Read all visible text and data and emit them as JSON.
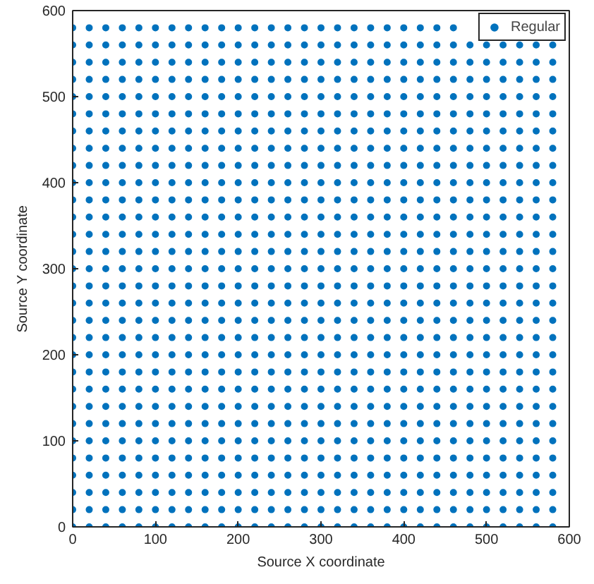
{
  "chart_data": {
    "type": "scatter",
    "xlabel": "Source X coordinate",
    "ylabel": "Source Y coordinate",
    "xlim": [
      0,
      600
    ],
    "ylim": [
      0,
      600
    ],
    "xticks": [
      0,
      100,
      200,
      300,
      400,
      500,
      600
    ],
    "yticks": [
      0,
      100,
      200,
      300,
      400,
      500,
      600
    ],
    "legend": "top right",
    "marker": "circle",
    "series": [
      {
        "name": "Regular",
        "color": "#0072bd",
        "x": [
          0,
          20,
          40,
          60,
          80,
          100,
          120,
          140,
          160,
          180,
          200,
          220,
          240,
          260,
          280,
          300,
          320,
          340,
          360,
          380,
          400,
          420,
          440,
          460,
          480,
          500,
          520,
          540,
          560,
          580,
          0,
          20,
          40,
          60,
          80,
          100,
          120,
          140,
          160,
          180,
          200,
          220,
          240,
          260,
          280,
          300,
          320,
          340,
          360,
          380,
          400,
          420,
          440,
          460,
          480,
          500,
          520,
          540,
          560,
          580,
          0,
          20,
          40,
          60,
          80,
          100,
          120,
          140,
          160,
          180,
          200,
          220,
          240,
          260,
          280,
          300,
          320,
          340,
          360,
          380,
          400,
          420,
          440,
          460,
          480,
          500,
          520,
          540,
          560,
          580,
          0,
          20,
          40,
          60,
          80,
          100,
          120,
          140,
          160,
          180,
          200,
          220,
          240,
          260,
          280,
          300,
          320,
          340,
          360,
          380,
          400,
          420,
          440,
          460,
          480,
          500,
          520,
          540,
          560,
          580,
          0,
          20,
          40,
          60,
          80,
          100,
          120,
          140,
          160,
          180,
          200,
          220,
          240,
          260,
          280,
          300,
          320,
          340,
          360,
          380,
          400,
          420,
          440,
          460,
          480,
          500,
          520,
          540,
          560,
          580,
          0,
          20,
          40,
          60,
          80,
          100,
          120,
          140,
          160,
          180,
          200,
          220,
          240,
          260,
          280,
          300,
          320,
          340,
          360,
          380,
          400,
          420,
          440,
          460,
          480,
          500,
          520,
          540,
          560,
          580,
          0,
          20,
          40,
          60,
          80,
          100,
          120,
          140,
          160,
          180,
          200,
          220,
          240,
          260,
          280,
          300,
          320,
          340,
          360,
          380,
          400,
          420,
          440,
          460,
          480,
          500,
          520,
          540,
          560,
          580,
          0,
          20,
          40,
          60,
          80,
          100,
          120,
          140,
          160,
          180,
          200,
          220,
          240,
          260,
          280,
          300,
          320,
          340,
          360,
          380,
          400,
          420,
          440,
          460,
          480,
          500,
          520,
          540,
          560,
          580,
          0,
          20,
          40,
          60,
          80,
          100,
          120,
          140,
          160,
          180,
          200,
          220,
          240,
          260,
          280,
          300,
          320,
          340,
          360,
          380,
          400,
          420,
          440,
          460,
          480,
          500,
          520,
          540,
          560,
          580,
          0,
          20,
          40,
          60,
          80,
          100,
          120,
          140,
          160,
          180,
          200,
          220,
          240,
          260,
          280,
          300,
          320,
          340,
          360,
          380,
          400,
          420,
          440,
          460,
          480,
          500,
          520,
          540,
          560,
          580,
          0,
          20,
          40,
          60,
          80,
          100,
          120,
          140,
          160,
          180,
          200,
          220,
          240,
          260,
          280,
          300,
          320,
          340,
          360,
          380,
          400,
          420,
          440,
          460,
          480,
          500,
          520,
          540,
          560,
          580,
          0,
          20,
          40,
          60,
          80,
          100,
          120,
          140,
          160,
          180,
          200,
          220,
          240,
          260,
          280,
          300,
          320,
          340,
          360,
          380,
          400,
          420,
          440,
          460,
          480,
          500,
          520,
          540,
          560,
          580,
          0,
          20,
          40,
          60,
          80,
          100,
          120,
          140,
          160,
          180,
          200,
          220,
          240,
          260,
          280,
          300,
          320,
          340,
          360,
          380,
          400,
          420,
          440,
          460,
          480,
          500,
          520,
          540,
          560,
          580,
          0,
          20,
          40,
          60,
          80,
          100,
          120,
          140,
          160,
          180,
          200,
          220,
          240,
          260,
          280,
          300,
          320,
          340,
          360,
          380,
          400,
          420,
          440,
          460,
          480,
          500,
          520,
          540,
          560,
          580,
          0,
          20,
          40,
          60,
          80,
          100,
          120,
          140,
          160,
          180,
          200,
          220,
          240,
          260,
          280,
          300,
          320,
          340,
          360,
          380,
          400,
          420,
          440,
          460,
          480,
          500,
          520,
          540,
          560,
          580,
          0,
          20,
          40,
          60,
          80,
          100,
          120,
          140,
          160,
          180,
          200,
          220,
          240,
          260,
          280,
          300,
          320,
          340,
          360,
          380,
          400,
          420,
          440,
          460,
          480,
          500,
          520,
          540,
          560,
          580,
          0,
          20,
          40,
          60,
          80,
          100,
          120,
          140,
          160,
          180,
          200,
          220,
          240,
          260,
          280,
          300,
          320,
          340,
          360,
          380,
          400,
          420,
          440,
          460,
          480,
          500,
          520,
          540,
          560,
          580,
          0,
          20,
          40,
          60,
          80,
          100,
          120,
          140,
          160,
          180,
          200,
          220,
          240,
          260,
          280,
          300,
          320,
          340,
          360,
          380,
          400,
          420,
          440,
          460,
          480,
          500,
          520,
          540,
          560,
          580,
          0,
          20,
          40,
          60,
          80,
          100,
          120,
          140,
          160,
          180,
          200,
          220,
          240,
          260,
          280,
          300,
          320,
          340,
          360,
          380,
          400,
          420,
          440,
          460,
          480,
          500,
          520,
          540,
          560,
          580,
          0,
          20,
          40,
          60,
          80,
          100,
          120,
          140,
          160,
          180,
          200,
          220,
          240,
          260,
          280,
          300,
          320,
          340,
          360,
          380,
          400,
          420,
          440,
          460,
          480,
          500,
          520,
          540,
          560,
          580,
          0,
          20,
          40,
          60,
          80,
          100,
          120,
          140,
          160,
          180,
          200,
          220,
          240,
          260,
          280,
          300,
          320,
          340,
          360,
          380,
          400,
          420,
          440,
          460,
          480,
          500,
          520,
          540,
          560,
          580,
          0,
          20,
          40,
          60,
          80,
          100,
          120,
          140,
          160,
          180,
          200,
          220,
          240,
          260,
          280,
          300,
          320,
          340,
          360,
          380,
          400,
          420,
          440,
          460,
          480,
          500,
          520,
          540,
          560,
          580,
          0,
          20,
          40,
          60,
          80,
          100,
          120,
          140,
          160,
          180,
          200,
          220,
          240,
          260,
          280,
          300,
          320,
          340,
          360,
          380,
          400,
          420,
          440,
          460,
          480,
          500,
          520,
          540,
          560,
          580,
          0,
          20,
          40,
          60,
          80,
          100,
          120,
          140,
          160,
          180,
          200,
          220,
          240,
          260,
          280,
          300,
          320,
          340,
          360,
          380,
          400,
          420,
          440,
          460,
          480,
          500,
          520,
          540,
          560,
          580,
          0,
          20,
          40,
          60,
          80,
          100,
          120,
          140,
          160,
          180,
          200,
          220,
          240,
          260,
          280,
          300,
          320,
          340,
          360,
          380,
          400,
          420,
          440,
          460,
          480,
          500,
          520,
          540,
          560,
          580,
          0,
          20,
          40,
          60,
          80,
          100,
          120,
          140,
          160,
          180,
          200,
          220,
          240,
          260,
          280,
          300,
          320,
          340,
          360,
          380,
          400,
          420,
          440,
          460,
          480,
          500,
          520,
          540,
          560,
          580,
          0,
          20,
          40,
          60,
          80,
          100,
          120,
          140,
          160,
          180,
          200,
          220,
          240,
          260,
          280,
          300,
          320,
          340,
          360,
          380,
          400,
          420,
          440,
          460,
          480,
          500,
          520,
          540,
          560,
          580,
          0,
          20,
          40,
          60,
          80,
          100,
          120,
          140,
          160,
          180,
          200,
          220,
          240,
          260,
          280,
          300,
          320,
          340,
          360,
          380,
          400,
          420,
          440,
          460,
          480,
          500,
          520,
          540,
          560,
          580,
          0,
          20,
          40,
          60,
          80,
          100,
          120,
          140,
          160,
          180,
          200,
          220,
          240,
          260,
          280,
          300,
          320,
          340,
          360,
          380,
          400,
          420,
          440,
          460,
          480,
          500,
          520,
          540,
          560,
          580,
          0,
          20,
          40,
          60,
          80,
          100,
          120,
          140,
          160,
          180,
          200,
          220,
          240,
          260,
          280,
          300,
          320,
          340,
          360,
          380,
          400,
          420,
          440,
          460,
          null,
          null,
          null,
          null,
          null,
          null
        ],
        "values": [
          0,
          0,
          0,
          0,
          0,
          0,
          0,
          0,
          0,
          0,
          0,
          0,
          0,
          0,
          0,
          0,
          0,
          0,
          0,
          0,
          0,
          0,
          0,
          0,
          0,
          0,
          0,
          0,
          0,
          0,
          20,
          20,
          20,
          20,
          20,
          20,
          20,
          20,
          20,
          20,
          20,
          20,
          20,
          20,
          20,
          20,
          20,
          20,
          20,
          20,
          20,
          20,
          20,
          20,
          20,
          20,
          20,
          20,
          20,
          20,
          40,
          40,
          40,
          40,
          40,
          40,
          40,
          40,
          40,
          40,
          40,
          40,
          40,
          40,
          40,
          40,
          40,
          40,
          40,
          40,
          40,
          40,
          40,
          40,
          40,
          40,
          40,
          40,
          40,
          40,
          60,
          60,
          60,
          60,
          60,
          60,
          60,
          60,
          60,
          60,
          60,
          60,
          60,
          60,
          60,
          60,
          60,
          60,
          60,
          60,
          60,
          60,
          60,
          60,
          60,
          60,
          60,
          60,
          60,
          60,
          80,
          80,
          80,
          80,
          80,
          80,
          80,
          80,
          80,
          80,
          80,
          80,
          80,
          80,
          80,
          80,
          80,
          80,
          80,
          80,
          80,
          80,
          80,
          80,
          80,
          80,
          80,
          80,
          80,
          80,
          100,
          100,
          100,
          100,
          100,
          100,
          100,
          100,
          100,
          100,
          100,
          100,
          100,
          100,
          100,
          100,
          100,
          100,
          100,
          100,
          100,
          100,
          100,
          100,
          100,
          100,
          100,
          100,
          100,
          100,
          120,
          120,
          120,
          120,
          120,
          120,
          120,
          120,
          120,
          120,
          120,
          120,
          120,
          120,
          120,
          120,
          120,
          120,
          120,
          120,
          120,
          120,
          120,
          120,
          120,
          120,
          120,
          120,
          120,
          120,
          140,
          140,
          140,
          140,
          140,
          140,
          140,
          140,
          140,
          140,
          140,
          140,
          140,
          140,
          140,
          140,
          140,
          140,
          140,
          140,
          140,
          140,
          140,
          140,
          140,
          140,
          140,
          140,
          140,
          140,
          160,
          160,
          160,
          160,
          160,
          160,
          160,
          160,
          160,
          160,
          160,
          160,
          160,
          160,
          160,
          160,
          160,
          160,
          160,
          160,
          160,
          160,
          160,
          160,
          160,
          160,
          160,
          160,
          160,
          160,
          180,
          180,
          180,
          180,
          180,
          180,
          180,
          180,
          180,
          180,
          180,
          180,
          180,
          180,
          180,
          180,
          180,
          180,
          180,
          180,
          180,
          180,
          180,
          180,
          180,
          180,
          180,
          180,
          180,
          180,
          200,
          200,
          200,
          200,
          200,
          200,
          200,
          200,
          200,
          200,
          200,
          200,
          200,
          200,
          200,
          200,
          200,
          200,
          200,
          200,
          200,
          200,
          200,
          200,
          200,
          200,
          200,
          200,
          200,
          200,
          220,
          220,
          220,
          220,
          220,
          220,
          220,
          220,
          220,
          220,
          220,
          220,
          220,
          220,
          220,
          220,
          220,
          220,
          220,
          220,
          220,
          220,
          220,
          220,
          220,
          220,
          220,
          220,
          220,
          220,
          240,
          240,
          240,
          240,
          240,
          240,
          240,
          240,
          240,
          240,
          240,
          240,
          240,
          240,
          240,
          240,
          240,
          240,
          240,
          240,
          240,
          240,
          240,
          240,
          240,
          240,
          240,
          240,
          240,
          240,
          260,
          260,
          260,
          260,
          260,
          260,
          260,
          260,
          260,
          260,
          260,
          260,
          260,
          260,
          260,
          260,
          260,
          260,
          260,
          260,
          260,
          260,
          260,
          260,
          260,
          260,
          260,
          260,
          260,
          260,
          280,
          280,
          280,
          280,
          280,
          280,
          280,
          280,
          280,
          280,
          280,
          280,
          280,
          280,
          280,
          280,
          280,
          280,
          280,
          280,
          280,
          280,
          280,
          280,
          280,
          280,
          280,
          280,
          280,
          280,
          300,
          300,
          300,
          300,
          300,
          300,
          300,
          300,
          300,
          300,
          300,
          300,
          300,
          300,
          300,
          300,
          300,
          300,
          300,
          300,
          300,
          300,
          300,
          300,
          300,
          300,
          300,
          300,
          300,
          300,
          320,
          320,
          320,
          320,
          320,
          320,
          320,
          320,
          320,
          320,
          320,
          320,
          320,
          320,
          320,
          320,
          320,
          320,
          320,
          320,
          320,
          320,
          320,
          320,
          320,
          320,
          320,
          320,
          320,
          320,
          340,
          340,
          340,
          340,
          340,
          340,
          340,
          340,
          340,
          340,
          340,
          340,
          340,
          340,
          340,
          340,
          340,
          340,
          340,
          340,
          340,
          340,
          340,
          340,
          340,
          340,
          340,
          340,
          340,
          340,
          360,
          360,
          360,
          360,
          360,
          360,
          360,
          360,
          360,
          360,
          360,
          360,
          360,
          360,
          360,
          360,
          360,
          360,
          360,
          360,
          360,
          360,
          360,
          360,
          360,
          360,
          360,
          360,
          360,
          360,
          380,
          380,
          380,
          380,
          380,
          380,
          380,
          380,
          380,
          380,
          380,
          380,
          380,
          380,
          380,
          380,
          380,
          380,
          380,
          380,
          380,
          380,
          380,
          380,
          380,
          380,
          380,
          380,
          380,
          380,
          400,
          400,
          400,
          400,
          400,
          400,
          400,
          400,
          400,
          400,
          400,
          400,
          400,
          400,
          400,
          400,
          400,
          400,
          400,
          400,
          400,
          400,
          400,
          400,
          400,
          400,
          400,
          400,
          400,
          400,
          420,
          420,
          420,
          420,
          420,
          420,
          420,
          420,
          420,
          420,
          420,
          420,
          420,
          420,
          420,
          420,
          420,
          420,
          420,
          420,
          420,
          420,
          420,
          420,
          420,
          420,
          420,
          420,
          420,
          420,
          440,
          440,
          440,
          440,
          440,
          440,
          440,
          440,
          440,
          440,
          440,
          440,
          440,
          440,
          440,
          440,
          440,
          440,
          440,
          440,
          440,
          440,
          440,
          440,
          440,
          440,
          440,
          440,
          440,
          440,
          460,
          460,
          460,
          460,
          460,
          460,
          460,
          460,
          460,
          460,
          460,
          460,
          460,
          460,
          460,
          460,
          460,
          460,
          460,
          460,
          460,
          460,
          460,
          460,
          460,
          460,
          460,
          460,
          460,
          460,
          480,
          480,
          480,
          480,
          480,
          480,
          480,
          480,
          480,
          480,
          480,
          480,
          480,
          480,
          480,
          480,
          480,
          480,
          480,
          480,
          480,
          480,
          480,
          480,
          480,
          480,
          480,
          480,
          480,
          480,
          500,
          500,
          500,
          500,
          500,
          500,
          500,
          500,
          500,
          500,
          500,
          500,
          500,
          500,
          500,
          500,
          500,
          500,
          500,
          500,
          500,
          500,
          500,
          500,
          500,
          500,
          500,
          500,
          500,
          500,
          520,
          520,
          520,
          520,
          520,
          520,
          520,
          520,
          520,
          520,
          520,
          520,
          520,
          520,
          520,
          520,
          520,
          520,
          520,
          520,
          520,
          520,
          520,
          520,
          520,
          520,
          520,
          520,
          520,
          520,
          540,
          540,
          540,
          540,
          540,
          540,
          540,
          540,
          540,
          540,
          540,
          540,
          540,
          540,
          540,
          540,
          540,
          540,
          540,
          540,
          540,
          540,
          540,
          540,
          540,
          540,
          540,
          540,
          540,
          540,
          560,
          560,
          560,
          560,
          560,
          560,
          560,
          560,
          560,
          560,
          560,
          560,
          560,
          560,
          560,
          560,
          560,
          560,
          560,
          560,
          560,
          560,
          560,
          560,
          560,
          560,
          560,
          560,
          560,
          560,
          580,
          580,
          580,
          580,
          580,
          580,
          580,
          580,
          580,
          580,
          580,
          580,
          580,
          580,
          580,
          580,
          580,
          580,
          580,
          580,
          580,
          580,
          580,
          580,
          null,
          null,
          null,
          null,
          null,
          null
        ]
      }
    ]
  }
}
